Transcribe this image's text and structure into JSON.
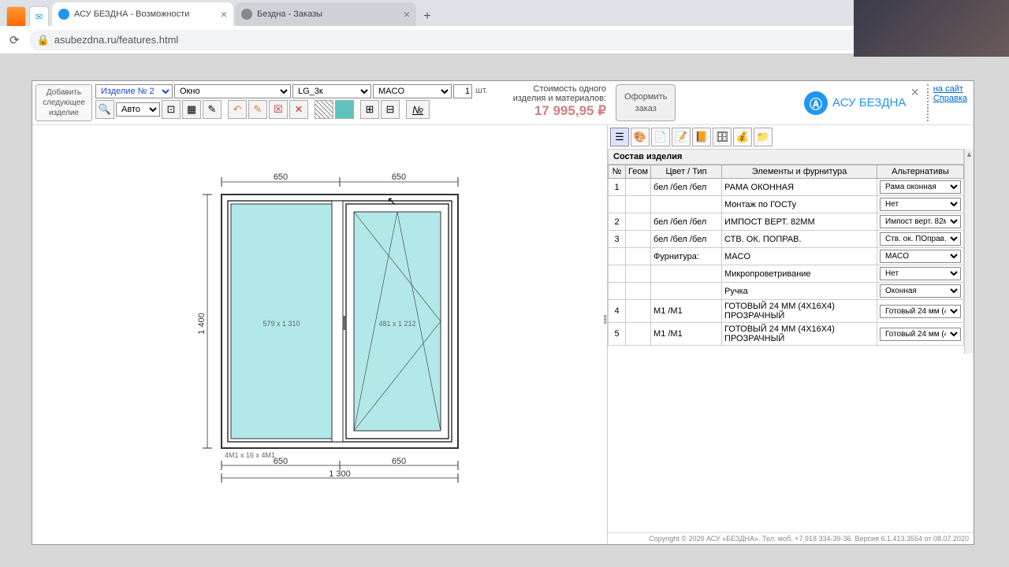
{
  "browser": {
    "tabs": [
      {
        "title": "АСУ БЕЗДНА - Возможности",
        "active": true
      },
      {
        "title": "Бездна - Заказы",
        "active": false
      }
    ],
    "url": "asubezdna.ru/features.html"
  },
  "toolbar": {
    "add_button": "Добавить\nследующее\nизделие",
    "sel_product": "Изделие № 2",
    "sel_type": "Окно",
    "sel_profile": "LG_3к",
    "sel_hardware": "MACO",
    "qty": "1",
    "qty_unit": "шт.",
    "sel_zoom": "Авто",
    "price_label1": "Стоимость одного",
    "price_label2": "изделия и материалов:",
    "price_value": "17 995,95 ₽",
    "order_button": "Оформить\nзаказ",
    "logo_text": "АСУ БЕЗДНА",
    "link_site": "на сайт",
    "link_help": "Справка"
  },
  "drawing": {
    "top_dim_left": "650",
    "top_dim_right": "650",
    "height_dim": "1 400",
    "bottom_dim_left": "650",
    "bottom_dim_right": "650",
    "total_width": "1 300",
    "pane_left": "579 x 1 310",
    "pane_right": "481 x 1 212",
    "glass_label": "4M1 x 16 x 4M1",
    "glass_color": "#b3e8e8",
    "frame_color": "#333"
  },
  "right_panel": {
    "title": "Состав изделия",
    "columns": [
      "№",
      "Геом",
      "Цвет / Тип",
      "Элементы и фурнитура",
      "Альтернативы"
    ],
    "rows": [
      {
        "n": "1",
        "geom": "",
        "color": "бел /бел /бел",
        "elem": "РАМА ОКОННАЯ",
        "alt": "Рама оконная"
      },
      {
        "n": "",
        "geom": "",
        "color": "",
        "elem": "Монтаж по ГОСТу",
        "alt": "Нет"
      },
      {
        "n": "2",
        "geom": "",
        "color": "бел /бел /бел",
        "elem": "ИМПОСТ ВЕРТ. 82ММ",
        "alt": "Импост верт. 82м"
      },
      {
        "n": "3",
        "geom": "",
        "color": "бел /бел /бел",
        "elem": "СТВ. ОК. ПОПРАВ.",
        "alt": "Ств. ок. ПОправ."
      },
      {
        "n": "",
        "geom": "",
        "color": "Фурнитура:",
        "elem": "MACO",
        "alt": "MACO"
      },
      {
        "n": "",
        "geom": "",
        "color": "",
        "elem": "Микропроветривание",
        "alt": "Нет"
      },
      {
        "n": "",
        "geom": "",
        "color": "",
        "elem": "Ручка",
        "alt": "Оконная"
      },
      {
        "n": "4",
        "geom": "",
        "color": "M1 /M1",
        "elem": "ГОТОВЫЙ 24 ММ (4Х16Х4) ПРОЗРАЧНЫЙ",
        "alt": "Готовый 24 мм (4"
      },
      {
        "n": "5",
        "geom": "",
        "color": "M1 /M1",
        "elem": "ГОТОВЫЙ 24 ММ (4Х16Х4) ПРОЗРАЧНЫЙ",
        "alt": "Готовый 24 мм (4"
      }
    ]
  },
  "footer": "Copyright © 2020 АСУ «БЕЗДНА». Тел. моб. +7 918 334-39-36.   Версия 6.1.413.3554 от 08.07.2020"
}
